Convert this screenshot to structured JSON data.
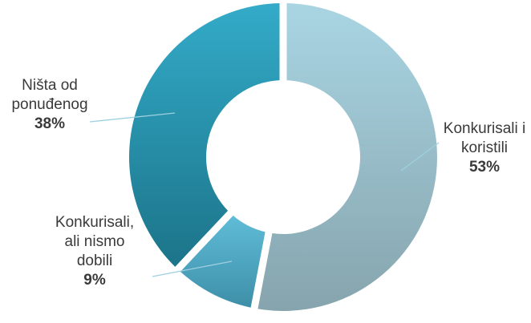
{
  "chart_data": {
    "type": "pie",
    "variant": "donut",
    "title": "",
    "slices": [
      {
        "label_lines": [
          "Konkurisali i",
          "koristili"
        ],
        "percent_label": "53%",
        "value": 53,
        "color_light": "#a9d5e3",
        "color_dark": "#86a4ad"
      },
      {
        "label_lines": [
          "Konkurisali,",
          "ali nismo",
          "dobili"
        ],
        "percent_label": "9%",
        "value": 9,
        "color_light": "#5fbcd7",
        "color_dark": "#3e8fa8"
      },
      {
        "label_lines": [
          "Ništa od",
          "ponuđenog"
        ],
        "percent_label": "38%",
        "value": 38,
        "color_light": "#33abc9",
        "color_dark": "#1c7489"
      }
    ],
    "leader_line_color": "#9ecfe0",
    "background": "#ffffff"
  }
}
